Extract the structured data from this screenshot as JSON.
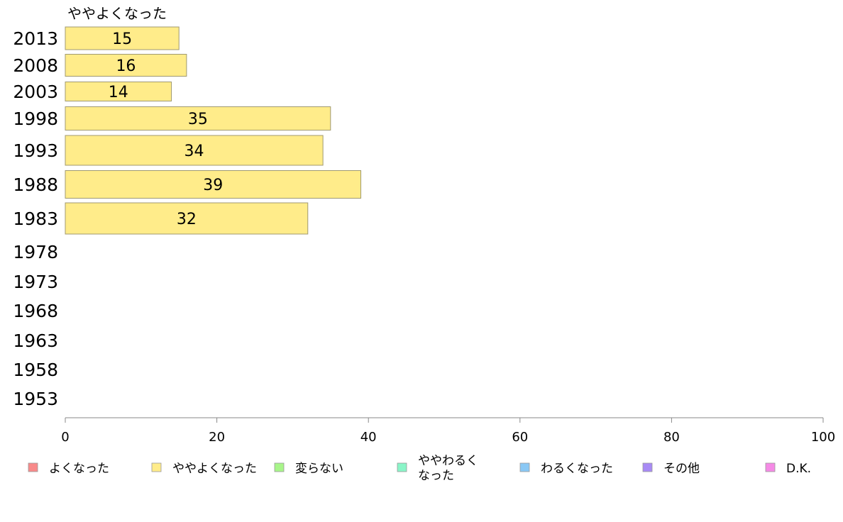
{
  "chart_data": {
    "type": "bar",
    "orientation": "horizontal",
    "series_title": "ややよくなった",
    "categories": [
      "2013",
      "2008",
      "2003",
      "1998",
      "1993",
      "1988",
      "1983",
      "1978",
      "1973",
      "1968",
      "1963",
      "1958",
      "1953"
    ],
    "values": [
      15,
      16,
      14,
      35,
      34,
      39,
      32,
      null,
      null,
      null,
      null,
      null,
      null
    ],
    "bar_color": "#ffec8a",
    "bar_border": "#a09a70",
    "xlim": [
      0,
      100
    ],
    "xticks": [
      0,
      20,
      40,
      60,
      80,
      100
    ],
    "grid": false,
    "legend_placement": "bottom",
    "legend": [
      {
        "label": "よくなった",
        "color": "#f88a8a"
      },
      {
        "label": "ややよくなった",
        "color": "#ffec8a"
      },
      {
        "label": "変らない",
        "color": "#a8f58a"
      },
      {
        "label": "ややわるく\nなった",
        "color": "#8af5c8"
      },
      {
        "label": "わるくなった",
        "color": "#8ac8f5"
      },
      {
        "label": "その他",
        "color": "#a88af5"
      },
      {
        "label": "D.K.",
        "color": "#f58ae6"
      }
    ]
  }
}
